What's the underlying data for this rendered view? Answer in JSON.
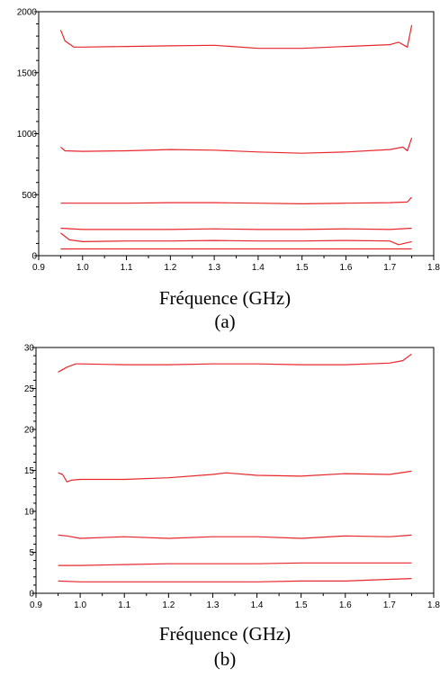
{
  "chart_data": [
    {
      "type": "line",
      "panel_label": "(a)",
      "xlabel": "Fréquence (GHz)",
      "ylabel": "",
      "xlim": [
        0.9,
        1.8
      ],
      "ylim": [
        0,
        2000
      ],
      "x_ticks": [
        0.9,
        1.0,
        1.1,
        1.2,
        1.3,
        1.4,
        1.5,
        1.6,
        1.7,
        1.8
      ],
      "x_tick_labels": [
        "0.9",
        "1.0",
        "1.1",
        "1.2",
        "1.3",
        "1.4",
        "1.5",
        "1.6",
        "1.7",
        "1.8"
      ],
      "y_ticks": [
        0,
        500,
        1000,
        1500,
        2000
      ],
      "y_tick_labels": [
        "0",
        "500",
        "1000",
        "1500",
        "2000"
      ],
      "grid": false,
      "line_color": "#e8262b",
      "series": [
        {
          "x": [
            0.95,
            0.96,
            0.98,
            1.0,
            1.1,
            1.2,
            1.3,
            1.4,
            1.5,
            1.6,
            1.7,
            1.72,
            1.74,
            1.75
          ],
          "values": [
            1850,
            1760,
            1710,
            1710,
            1715,
            1720,
            1725,
            1700,
            1700,
            1715,
            1730,
            1750,
            1710,
            1890
          ]
        },
        {
          "x": [
            0.95,
            0.96,
            1.0,
            1.1,
            1.2,
            1.3,
            1.4,
            1.5,
            1.6,
            1.7,
            1.73,
            1.74,
            1.75
          ],
          "values": [
            890,
            860,
            855,
            860,
            870,
            865,
            850,
            840,
            850,
            870,
            890,
            860,
            965
          ]
        },
        {
          "x": [
            0.95,
            1.0,
            1.1,
            1.2,
            1.3,
            1.4,
            1.5,
            1.6,
            1.7,
            1.74,
            1.75
          ],
          "values": [
            430,
            430,
            430,
            435,
            435,
            430,
            425,
            430,
            435,
            440,
            480
          ]
        },
        {
          "x": [
            0.95,
            1.0,
            1.1,
            1.2,
            1.3,
            1.4,
            1.5,
            1.6,
            1.7,
            1.75
          ],
          "values": [
            225,
            215,
            215,
            215,
            220,
            215,
            215,
            220,
            215,
            225
          ]
        },
        {
          "x": [
            0.95,
            0.97,
            1.0,
            1.1,
            1.2,
            1.3,
            1.4,
            1.5,
            1.6,
            1.7,
            1.72,
            1.75
          ],
          "values": [
            185,
            130,
            115,
            120,
            120,
            125,
            120,
            120,
            125,
            120,
            90,
            115
          ]
        },
        {
          "x": [
            0.95,
            1.0,
            1.2,
            1.4,
            1.6,
            1.75
          ],
          "values": [
            55,
            55,
            55,
            55,
            55,
            55
          ]
        }
      ]
    },
    {
      "type": "line",
      "panel_label": "(b)",
      "xlabel": "Fréquence (GHz)",
      "ylabel": "",
      "xlim": [
        0.9,
        1.8
      ],
      "ylim": [
        0,
        30
      ],
      "x_ticks": [
        0.9,
        1.0,
        1.1,
        1.2,
        1.3,
        1.4,
        1.5,
        1.6,
        1.7,
        1.8
      ],
      "x_tick_labels": [
        "0.9",
        "1.0",
        "1.1",
        "1.2",
        "1.3",
        "1.4",
        "1.5",
        "1.6",
        "1.7",
        "1.8"
      ],
      "y_ticks": [
        0,
        5,
        10,
        15,
        20,
        25,
        30
      ],
      "y_tick_labels": [
        "0",
        "5",
        "10",
        "15",
        "20",
        "25",
        "30"
      ],
      "grid": false,
      "line_color": "#e8262b",
      "series": [
        {
          "x": [
            0.95,
            0.97,
            0.99,
            1.0,
            1.1,
            1.2,
            1.3,
            1.4,
            1.5,
            1.6,
            1.7,
            1.73,
            1.75
          ],
          "values": [
            27.0,
            27.6,
            28.0,
            28.0,
            27.9,
            27.9,
            28.0,
            28.0,
            27.9,
            27.9,
            28.1,
            28.4,
            29.2
          ]
        },
        {
          "x": [
            0.95,
            0.96,
            0.97,
            0.98,
            1.0,
            1.1,
            1.2,
            1.3,
            1.33,
            1.4,
            1.5,
            1.6,
            1.7,
            1.75
          ],
          "values": [
            14.7,
            14.5,
            13.6,
            13.8,
            13.9,
            13.9,
            14.1,
            14.5,
            14.7,
            14.4,
            14.3,
            14.6,
            14.5,
            14.9
          ]
        },
        {
          "x": [
            0.95,
            0.97,
            1.0,
            1.1,
            1.2,
            1.3,
            1.4,
            1.5,
            1.6,
            1.7,
            1.75
          ],
          "values": [
            7.1,
            7.0,
            6.7,
            6.9,
            6.7,
            6.9,
            6.9,
            6.7,
            7.0,
            6.9,
            7.1
          ]
        },
        {
          "x": [
            0.95,
            1.0,
            1.1,
            1.2,
            1.3,
            1.4,
            1.5,
            1.6,
            1.7,
            1.75
          ],
          "values": [
            3.4,
            3.4,
            3.5,
            3.6,
            3.6,
            3.6,
            3.7,
            3.7,
            3.7,
            3.7
          ]
        },
        {
          "x": [
            0.95,
            1.0,
            1.1,
            1.2,
            1.3,
            1.4,
            1.5,
            1.6,
            1.7,
            1.75
          ],
          "values": [
            1.5,
            1.4,
            1.4,
            1.4,
            1.4,
            1.4,
            1.5,
            1.5,
            1.7,
            1.8
          ]
        }
      ]
    }
  ]
}
